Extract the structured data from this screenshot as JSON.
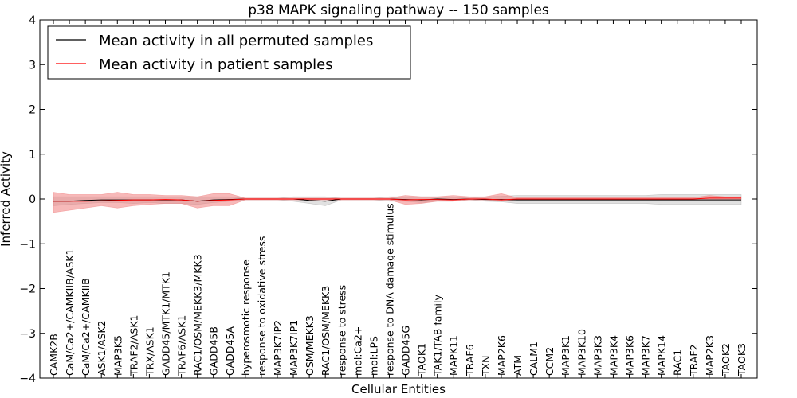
{
  "chart_data": {
    "type": "line",
    "title": "p38 MAPK signaling pathway -- 150 samples",
    "xlabel": "Cellular Entities",
    "ylabel": "Inferred Activity",
    "ylim": [
      -4,
      4
    ],
    "yticks": [
      "−4",
      "−3",
      "−2",
      "−1",
      "0",
      "1",
      "2",
      "3",
      "4"
    ],
    "yticks_values": [
      -4,
      -3,
      -2,
      -1,
      0,
      1,
      2,
      3,
      4
    ],
    "legend_position": "top-left",
    "categories": [
      "CAMK2B",
      "CaM/Ca2+/CAMKIIB/ASK1",
      "CaM/Ca2+/CAMKIIB",
      "ASK1/ASK2",
      "MAP3K5",
      "TRAF2/ASK1",
      "TRX/ASK1",
      "GADD45/MTK1/MTK1",
      "TRAF6/ASK1",
      "RAC1/OSM/MEKK3/MKK3",
      "GADD45B",
      "GADD45A",
      "hyperosmotic response",
      "response to oxidative stress",
      "MAP3K7IP2",
      "MAP3K7IP1",
      "OSM/MEKK3",
      "RAC1/OSM/MEKK3",
      "response to stress",
      "mol:Ca2+",
      "mol:LPS",
      "response to DNA damage stimulus",
      "GADD45G",
      "TAOK1",
      "TAK1/TAB family",
      "MAPK11",
      "TRAF6",
      "TXN",
      "MAP2K6",
      "ATM",
      "CALM1",
      "CCM2",
      "MAP3K1",
      "MAP3K10",
      "MAP3K3",
      "MAP3K4",
      "MAP3K6",
      "MAP3K7",
      "MAPK14",
      "RAC1",
      "TRAF2",
      "MAP2K3",
      "TAOK2",
      "TAOK3"
    ],
    "series": [
      {
        "name": "Mean activity in all permuted samples",
        "color": "#000000",
        "band_color": "#aaaaaa",
        "values": [
          -0.05,
          -0.05,
          -0.03,
          -0.02,
          -0.02,
          -0.02,
          -0.02,
          -0.02,
          -0.02,
          -0.05,
          -0.02,
          -0.01,
          0,
          0,
          0,
          0,
          -0.03,
          -0.05,
          0,
          0,
          0,
          0,
          -0.01,
          -0.02,
          0,
          -0.01,
          0,
          -0.01,
          -0.01,
          -0.02,
          -0.02,
          -0.02,
          -0.02,
          -0.02,
          -0.02,
          -0.02,
          -0.02,
          -0.02,
          -0.02,
          -0.02,
          -0.02,
          -0.02,
          -0.02,
          -0.02
        ],
        "band_lower": [
          -0.15,
          -0.12,
          -0.1,
          -0.08,
          -0.08,
          -0.1,
          -0.08,
          -0.1,
          -0.1,
          -0.12,
          -0.08,
          -0.05,
          -0.02,
          -0.02,
          -0.02,
          -0.05,
          -0.1,
          -0.15,
          -0.02,
          -0.02,
          -0.02,
          -0.05,
          -0.05,
          -0.08,
          -0.05,
          -0.05,
          -0.02,
          -0.05,
          -0.06,
          -0.1,
          -0.1,
          -0.1,
          -0.1,
          -0.1,
          -0.1,
          -0.1,
          -0.1,
          -0.1,
          -0.12,
          -0.12,
          -0.12,
          -0.12,
          -0.12,
          -0.12
        ],
        "band_upper": [
          0.05,
          0.05,
          0.05,
          0.05,
          0.05,
          0.05,
          0.05,
          0.05,
          0.05,
          0.05,
          0.05,
          0.05,
          0.02,
          0.02,
          0.02,
          0.05,
          0.05,
          0.05,
          0.02,
          0.02,
          0.02,
          0.05,
          0.05,
          0.05,
          0.05,
          0.05,
          0.02,
          0.05,
          0.06,
          0.08,
          0.08,
          0.08,
          0.08,
          0.08,
          0.08,
          0.08,
          0.08,
          0.08,
          0.1,
          0.1,
          0.1,
          0.1,
          0.1,
          0.1
        ]
      },
      {
        "name": "Mean activity in patient samples",
        "color": "#ff0000",
        "band_color": "#f08080",
        "values": [
          -0.05,
          -0.05,
          -0.05,
          -0.04,
          -0.03,
          -0.02,
          -0.02,
          -0.01,
          -0.02,
          -0.05,
          -0.03,
          -0.02,
          0,
          0,
          0,
          0,
          0,
          0,
          0,
          0,
          0,
          0,
          -0.02,
          -0.01,
          -0.01,
          -0.02,
          0,
          0,
          -0.02,
          0,
          0,
          0,
          0,
          0,
          0,
          0,
          0,
          0,
          0,
          0,
          0,
          0.02,
          0.02,
          0.02
        ],
        "band_lower": [
          -0.3,
          -0.25,
          -0.2,
          -0.15,
          -0.2,
          -0.15,
          -0.12,
          -0.1,
          -0.1,
          -0.2,
          -0.15,
          -0.15,
          -0.02,
          -0.02,
          -0.02,
          -0.02,
          -0.02,
          -0.02,
          -0.02,
          -0.02,
          -0.02,
          -0.02,
          -0.12,
          -0.1,
          -0.05,
          -0.05,
          -0.02,
          -0.02,
          -0.05,
          -0.02,
          -0.02,
          -0.02,
          -0.02,
          -0.02,
          -0.02,
          -0.02,
          -0.02,
          -0.02,
          -0.02,
          -0.02,
          -0.02,
          -0.02,
          -0.02,
          -0.02
        ],
        "band_upper": [
          0.15,
          0.1,
          0.1,
          0.1,
          0.15,
          0.1,
          0.1,
          0.08,
          0.08,
          0.05,
          0.12,
          0.12,
          0.02,
          0.02,
          0.02,
          0.02,
          0.02,
          0.02,
          0.02,
          0.02,
          0.02,
          0.02,
          0.08,
          0.05,
          0.05,
          0.08,
          0.05,
          0.05,
          0.12,
          0.03,
          0.03,
          0.03,
          0.03,
          0.03,
          0.03,
          0.03,
          0.03,
          0.03,
          0.03,
          0.03,
          0.03,
          0.08,
          0.05,
          0.05
        ]
      }
    ]
  }
}
